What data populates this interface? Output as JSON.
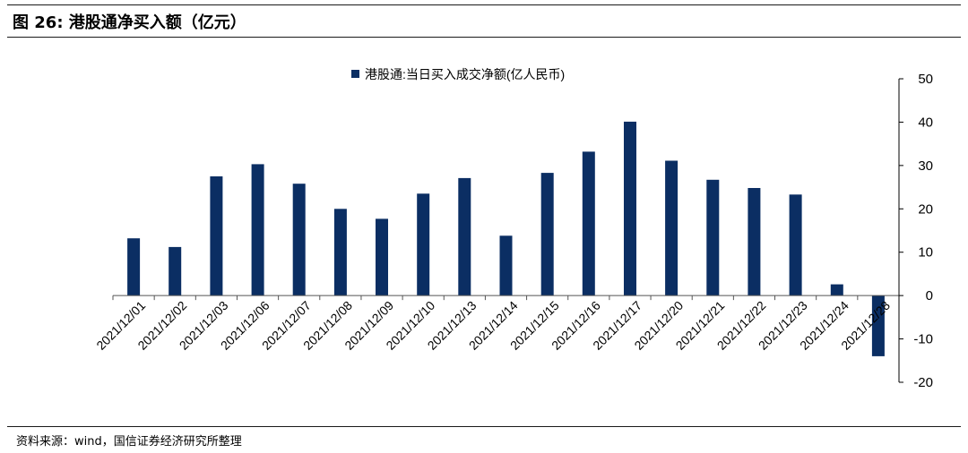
{
  "figure": {
    "title": "图 26: 港股通净买入额（亿元）",
    "source": "资料来源：wind，国信证券经济研究所整理"
  },
  "chart_data": {
    "type": "bar",
    "categories": [
      "2021/12/01",
      "2021/12/02",
      "2021/12/03",
      "2021/12/06",
      "2021/12/07",
      "2021/12/08",
      "2021/12/09",
      "2021/12/10",
      "2021/12/13",
      "2021/12/14",
      "2021/12/15",
      "2021/12/16",
      "2021/12/17",
      "2021/12/20",
      "2021/12/21",
      "2021/12/22",
      "2021/12/23",
      "2021/12/24",
      "2021/12/28"
    ],
    "series": [
      {
        "name": "港股通:当日买入成交净额(亿人民币)",
        "values": [
          13.2,
          11.2,
          27.5,
          30.3,
          25.8,
          20.0,
          17.7,
          23.5,
          27.1,
          13.8,
          28.3,
          33.2,
          40.1,
          31.1,
          26.7,
          24.8,
          23.3,
          2.6,
          -14.0
        ],
        "color": "#0b2e63"
      }
    ],
    "ylim": [
      -20,
      50
    ],
    "yticks": [
      -20,
      -10,
      0,
      10,
      20,
      30,
      40,
      50
    ],
    "ytick_labels": [
      "-20",
      "-10",
      "0",
      "10",
      "20",
      "30",
      "40",
      "50"
    ],
    "yaxis_side": "right",
    "legend_position": "top-center",
    "grid": false,
    "xlabel": "",
    "ylabel": ""
  }
}
